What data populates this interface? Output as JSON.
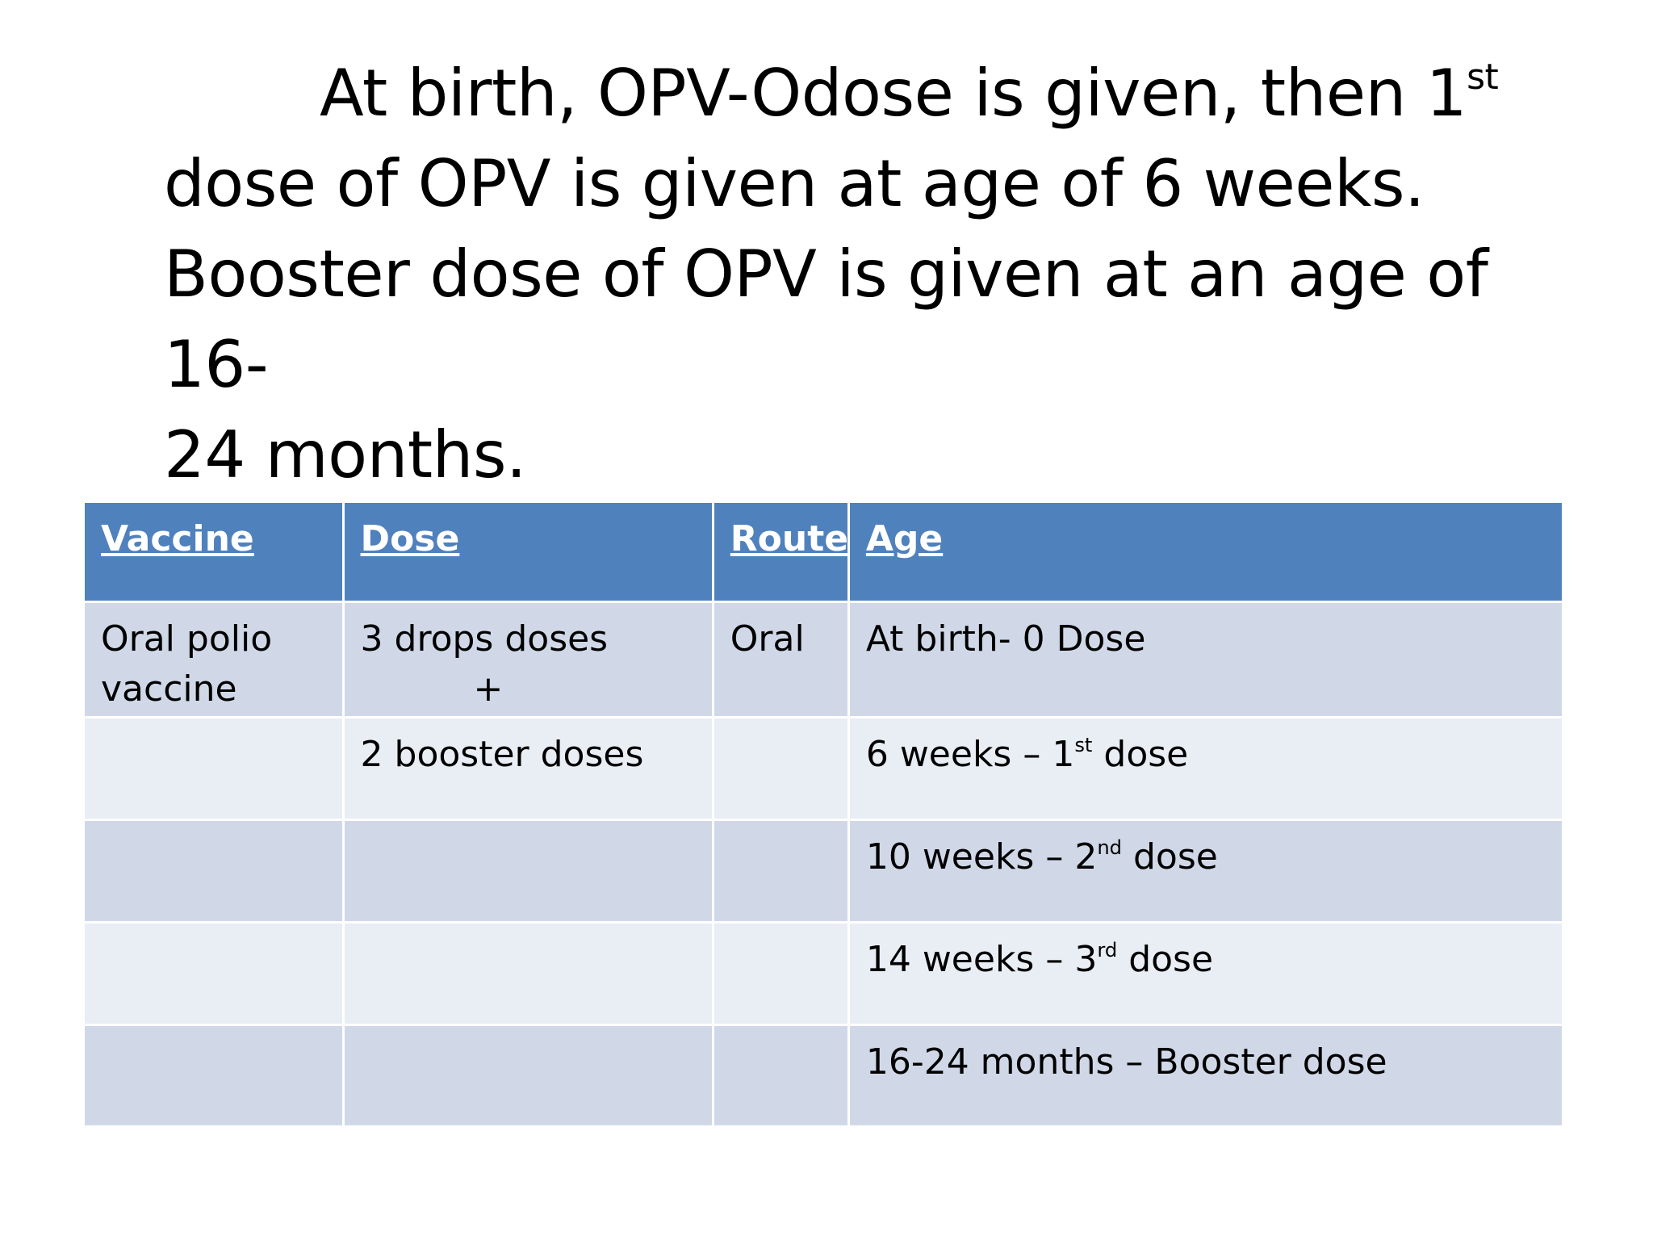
{
  "paragraph": {
    "line1_pre": "At birth, OPV-Odose is given, then 1",
    "line1_sup": "st",
    "line2": "dose of OPV is given at age of 6 weeks.",
    "line3": "Booster dose of OPV is given at an age of 16-",
    "line4": "24 months."
  },
  "table": {
    "headers": {
      "vaccine": "Vaccine",
      "dose": "Dose",
      "route": "Route",
      "age": "Age"
    },
    "rows": [
      {
        "vaccine_line1": "Oral polio",
        "vaccine_line2": "vaccine",
        "dose_line1": "3 drops doses",
        "dose_line2": "+",
        "route": "Oral",
        "age_pre": "At birth- 0 Dose",
        "age_sup": "",
        "age_post": ""
      },
      {
        "vaccine": "",
        "dose": "2 booster doses",
        "route": "",
        "age_pre": "6 weeks – 1",
        "age_sup": "st",
        "age_post": " dose"
      },
      {
        "vaccine": "",
        "dose": "",
        "route": "",
        "age_pre": "10 weeks – 2",
        "age_sup": "nd",
        "age_post": " dose"
      },
      {
        "vaccine": "",
        "dose": "",
        "route": "",
        "age_pre": "14 weeks – 3",
        "age_sup": "rd",
        "age_post": " dose"
      },
      {
        "vaccine": "",
        "dose": "",
        "route": "",
        "age_pre": "16-24 months – Booster dose",
        "age_sup": "",
        "age_post": ""
      }
    ]
  },
  "colors": {
    "header_bg": "#4f81bd",
    "row_odd_bg": "#d0d8e8",
    "row_even_bg": "#e9edf4",
    "header_text": "#ffffff"
  }
}
